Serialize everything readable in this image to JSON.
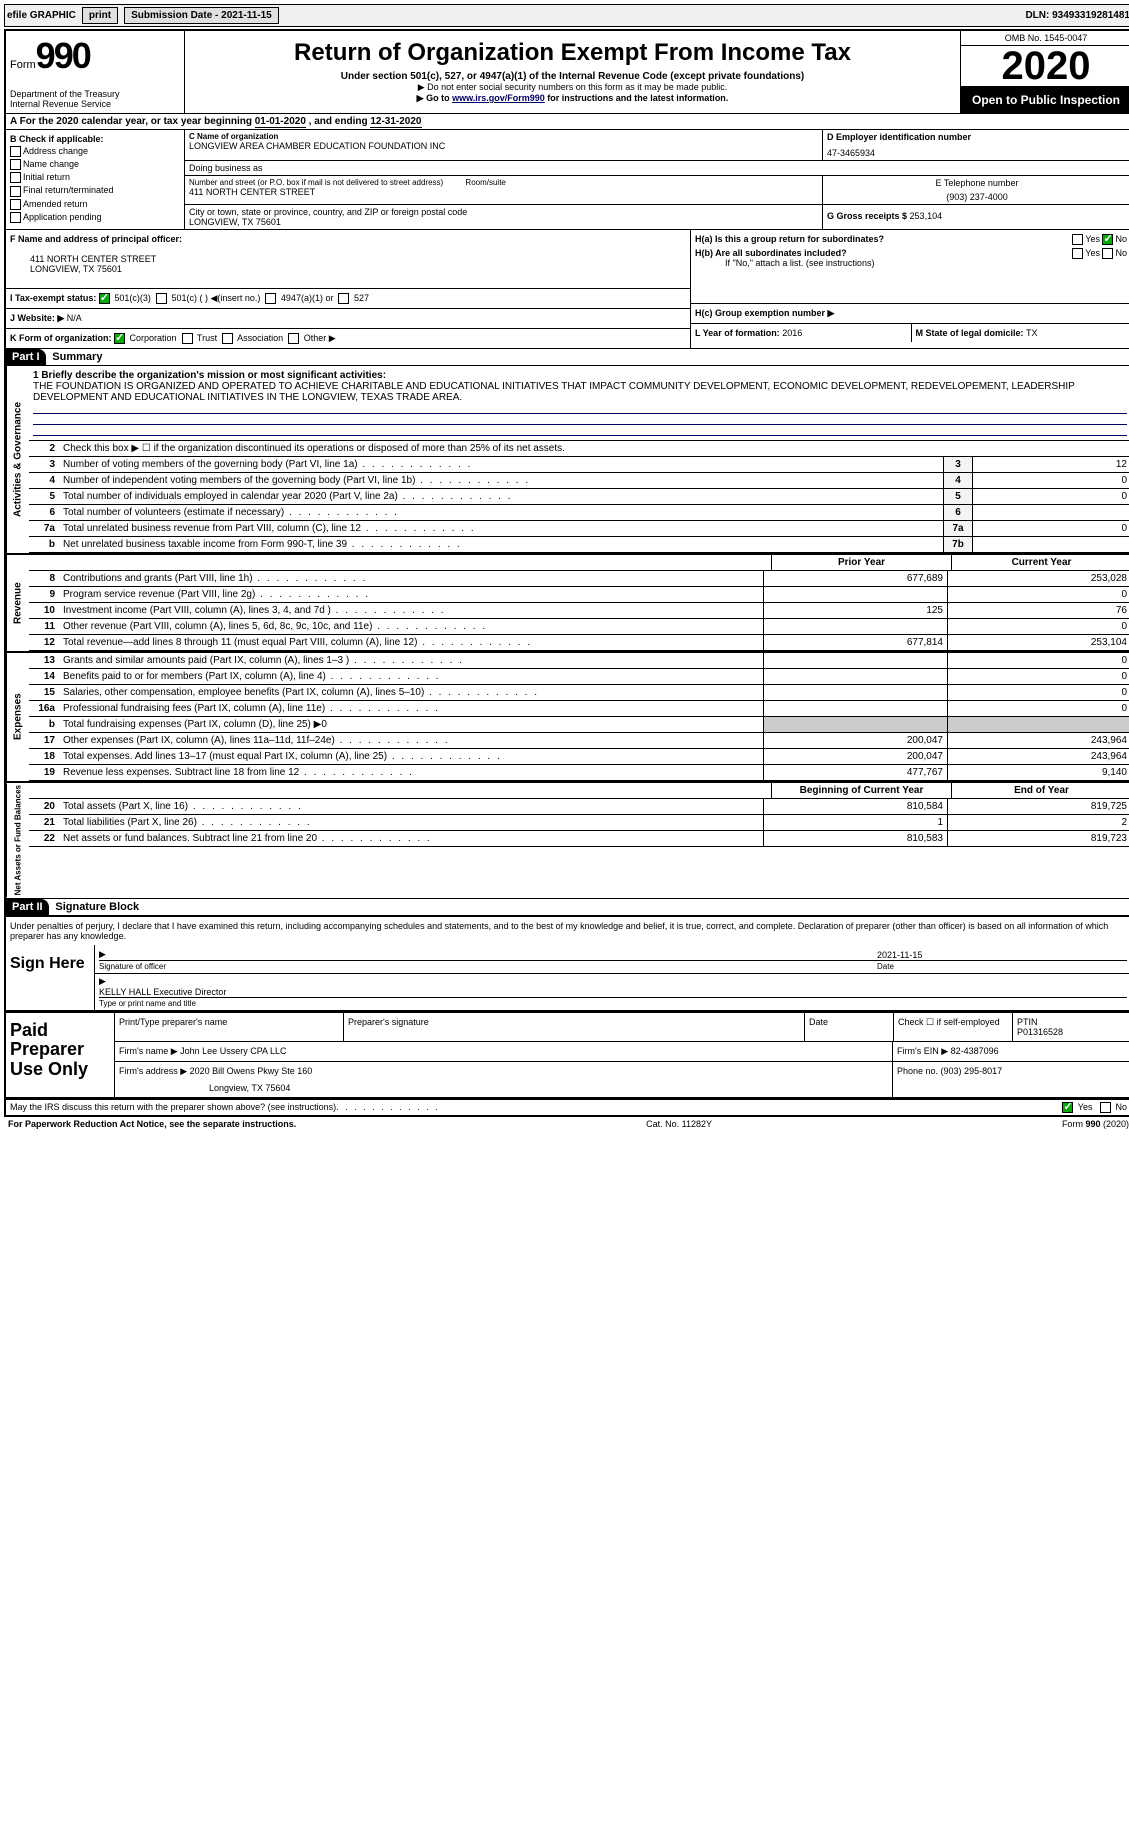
{
  "topbar": {
    "efile": "efile GRAPHIC",
    "print": "print",
    "sub_label": "Submission Date - ",
    "sub_date": "2021-11-15",
    "dln_label": "DLN: ",
    "dln": "93493319281481"
  },
  "header": {
    "form_word": "Form",
    "form_num": "990",
    "dept": "Department of the Treasury\nInternal Revenue Service",
    "title": "Return of Organization Exempt From Income Tax",
    "sub1": "Under section 501(c), 527, or 4947(a)(1) of the Internal Revenue Code (except private foundations)",
    "sub2": "▶ Do not enter social security numbers on this form as it may be made public.",
    "sub3_pre": "▶ Go to ",
    "sub3_link": "www.irs.gov/Form990",
    "sub3_post": " for instructions and the latest information.",
    "omb": "OMB No. 1545-0047",
    "year": "2020",
    "otp": "Open to Public Inspection"
  },
  "period": {
    "text_pre": "A For the 2020 calendar year, or tax year beginning ",
    "begin": "01-01-2020",
    "mid": " , and ending ",
    "end": "12-31-2020"
  },
  "boxB": {
    "title": "B Check if applicable:",
    "items": [
      "Address change",
      "Name change",
      "Initial return",
      "Final return/terminated",
      "Amended return",
      "Application pending"
    ]
  },
  "boxC": {
    "label": "C Name of organization",
    "name": "LONGVIEW AREA CHAMBER EDUCATION FOUNDATION INC",
    "dba_label": "Doing business as",
    "addr_label": "Number and street (or P.O. box if mail is not delivered to street address)",
    "room_label": "Room/suite",
    "addr": "411 NORTH CENTER STREET",
    "city_label": "City or town, state or province, country, and ZIP or foreign postal code",
    "city": "LONGVIEW, TX  75601"
  },
  "boxD": {
    "label": "D Employer identification number",
    "ein": "47-3465934"
  },
  "boxE": {
    "label": "E Telephone number",
    "tel": "(903) 237-4000"
  },
  "boxG": {
    "label": "G Gross receipts $ ",
    "val": "253,104"
  },
  "boxF": {
    "label": "F  Name and address of principal officer:",
    "line1": "411 NORTH CENTER STREET",
    "line2": "LONGVIEW, TX  75601"
  },
  "boxH": {
    "a": "H(a)  Is this a group return for subordinates?",
    "b": "H(b)  Are all subordinates included?",
    "note": "If \"No,\" attach a list. (see instructions)",
    "c": "H(c)  Group exemption number ▶",
    "yes": "Yes",
    "no": "No"
  },
  "boxI": {
    "label": "I  Tax-exempt status:",
    "opts": [
      "501(c)(3)",
      "501(c) (   ) ◀(insert no.)",
      "4947(a)(1) or",
      "527"
    ]
  },
  "boxJ": {
    "label": "J  Website: ▶ ",
    "val": "N/A"
  },
  "boxK": {
    "label": "K Form of organization:",
    "opts": [
      "Corporation",
      "Trust",
      "Association",
      "Other ▶"
    ]
  },
  "boxL": {
    "label": "L Year of formation: ",
    "val": "2016"
  },
  "boxM": {
    "label": "M State of legal domicile: ",
    "val": "TX"
  },
  "part1": {
    "num": "Part I",
    "title": "Summary"
  },
  "mission": {
    "label": "1  Briefly describe the organization's mission or most significant activities:",
    "text": "THE FOUNDATION IS ORGANIZED AND OPERATED TO ACHIEVE CHARITABLE AND EDUCATIONAL INITIATIVES THAT IMPACT COMMUNITY DEVELOPMENT, ECONOMIC DEVELOPMENT, REDEVELOPEMENT, LEADERSHIP DEVELOPMENT AND EDUCATIONAL INITIATIVES IN THE LONGVIEW, TEXAS TRADE AREA."
  },
  "gov_lines": [
    {
      "n": "2",
      "desc": "Check this box ▶ ☐ if the organization discontinued its operations or disposed of more than 25% of its net assets.",
      "box": "",
      "val": ""
    },
    {
      "n": "3",
      "desc": "Number of voting members of the governing body (Part VI, line 1a)",
      "box": "3",
      "val": "12"
    },
    {
      "n": "4",
      "desc": "Number of independent voting members of the governing body (Part VI, line 1b)",
      "box": "4",
      "val": "0"
    },
    {
      "n": "5",
      "desc": "Total number of individuals employed in calendar year 2020 (Part V, line 2a)",
      "box": "5",
      "val": "0"
    },
    {
      "n": "6",
      "desc": "Total number of volunteers (estimate if necessary)",
      "box": "6",
      "val": ""
    },
    {
      "n": "7a",
      "desc": "Total unrelated business revenue from Part VIII, column (C), line 12",
      "box": "7a",
      "val": "0"
    },
    {
      "n": "b",
      "desc": "Net unrelated business taxable income from Form 990-T, line 39",
      "box": "7b",
      "val": ""
    }
  ],
  "fin_headers": {
    "prior": "Prior Year",
    "current": "Current Year"
  },
  "revenue_lines": [
    {
      "n": "8",
      "desc": "Contributions and grants (Part VIII, line 1h)",
      "p": "677,689",
      "c": "253,028"
    },
    {
      "n": "9",
      "desc": "Program service revenue (Part VIII, line 2g)",
      "p": "",
      "c": "0"
    },
    {
      "n": "10",
      "desc": "Investment income (Part VIII, column (A), lines 3, 4, and 7d )",
      "p": "125",
      "c": "76"
    },
    {
      "n": "11",
      "desc": "Other revenue (Part VIII, column (A), lines 5, 6d, 8c, 9c, 10c, and 11e)",
      "p": "",
      "c": "0"
    },
    {
      "n": "12",
      "desc": "Total revenue—add lines 8 through 11 (must equal Part VIII, column (A), line 12)",
      "p": "677,814",
      "c": "253,104"
    }
  ],
  "expense_lines": [
    {
      "n": "13",
      "desc": "Grants and similar amounts paid (Part IX, column (A), lines 1–3 )",
      "p": "",
      "c": "0"
    },
    {
      "n": "14",
      "desc": "Benefits paid to or for members (Part IX, column (A), line 4)",
      "p": "",
      "c": "0"
    },
    {
      "n": "15",
      "desc": "Salaries, other compensation, employee benefits (Part IX, column (A), lines 5–10)",
      "p": "",
      "c": "0"
    },
    {
      "n": "16a",
      "desc": "Professional fundraising fees (Part IX, column (A), line 11e)",
      "p": "",
      "c": "0"
    },
    {
      "n": "b",
      "desc": "Total fundraising expenses (Part IX, column (D), line 25) ▶0",
      "p": "—",
      "c": "—"
    },
    {
      "n": "17",
      "desc": "Other expenses (Part IX, column (A), lines 11a–11d, 11f–24e)",
      "p": "200,047",
      "c": "243,964"
    },
    {
      "n": "18",
      "desc": "Total expenses. Add lines 13–17 (must equal Part IX, column (A), line 25)",
      "p": "200,047",
      "c": "243,964"
    },
    {
      "n": "19",
      "desc": "Revenue less expenses. Subtract line 18 from line 12",
      "p": "477,767",
      "c": "9,140"
    }
  ],
  "na_headers": {
    "begin": "Beginning of Current Year",
    "end": "End of Year"
  },
  "na_lines": [
    {
      "n": "20",
      "desc": "Total assets (Part X, line 16)",
      "p": "810,584",
      "c": "819,725"
    },
    {
      "n": "21",
      "desc": "Total liabilities (Part X, line 26)",
      "p": "1",
      "c": "2"
    },
    {
      "n": "22",
      "desc": "Net assets or fund balances. Subtract line 21 from line 20",
      "p": "810,583",
      "c": "819,723"
    }
  ],
  "part2": {
    "num": "Part II",
    "title": "Signature Block"
  },
  "sig": {
    "perjury": "Under penalties of perjury, I declare that I have examined this return, including accompanying schedules and statements, and to the best of my knowledge and belief, it is true, correct, and complete. Declaration of preparer (other than officer) is based on all information of which preparer has any knowledge.",
    "sign_here": "Sign Here",
    "sig_officer": "Signature of officer",
    "date": "2021-11-15",
    "date_label": "Date",
    "name": "KELLY HALL Executive Director",
    "name_label": "Type or print name and title"
  },
  "paid": {
    "label": "Paid Preparer Use Only",
    "r1": {
      "c1": "Print/Type preparer's name",
      "c2": "Preparer's signature",
      "c3": "Date",
      "c4_l": "Check ☐ if self-employed",
      "c5_l": "PTIN",
      "c5_v": "P01316528"
    },
    "r2": {
      "c1": "Firm's name    ▶ ",
      "c1v": "John Lee Ussery CPA LLC",
      "c2": "Firm's EIN ▶ ",
      "c2v": "82-4387096"
    },
    "r3": {
      "c1": "Firm's address ▶ ",
      "c1v": "2020 Bill Owens Pkwy Ste 160",
      "c1v2": "Longview, TX  75604",
      "c2": "Phone no. ",
      "c2v": "(903) 295-8017"
    }
  },
  "discuss": {
    "text": "May the IRS discuss this return with the preparer shown above? (see instructions)",
    "yes": "Yes",
    "no": "No"
  },
  "footer": {
    "left": "For Paperwork Reduction Act Notice, see the separate instructions.",
    "mid": "Cat. No. 11282Y",
    "right": "Form 990 (2020)"
  },
  "side_labels": {
    "gov": "Activities & Governance",
    "rev": "Revenue",
    "exp": "Expenses",
    "na": "Net Assets or Fund Balances"
  }
}
